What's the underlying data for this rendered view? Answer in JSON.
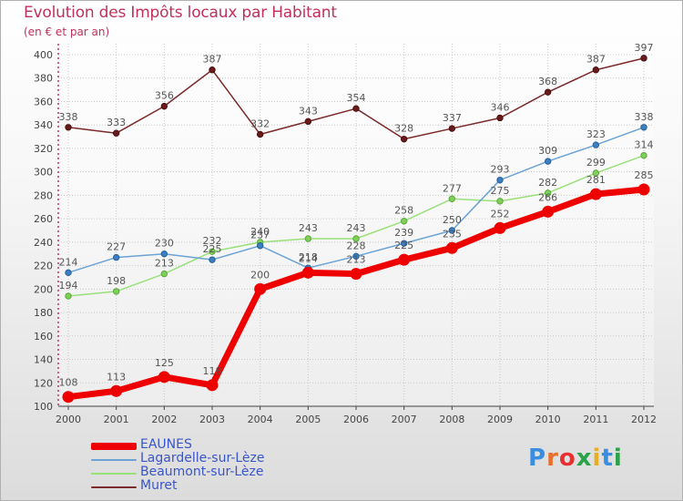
{
  "header": {
    "title": "Evolution des Impôts locaux par Habitant",
    "subtitle": "(en € et par an)"
  },
  "logo": {
    "text": "Proxiti",
    "colors": [
      "#3a8ee0",
      "#e8702a",
      "#e83030",
      "#2aa24a",
      "#e8b020",
      "#3a8ee0",
      "#2aa24a"
    ]
  },
  "chart_data": {
    "type": "line",
    "x": [
      2000,
      2001,
      2002,
      2003,
      2004,
      2005,
      2006,
      2007,
      2008,
      2009,
      2010,
      2011,
      2012
    ],
    "ylim": [
      100,
      400
    ],
    "yticks": [
      100,
      120,
      140,
      160,
      180,
      200,
      220,
      240,
      260,
      280,
      300,
      320,
      340,
      360,
      380,
      400
    ],
    "grid": true,
    "legend_position": "bottom-left",
    "series": [
      {
        "name": "EAUNES",
        "color": "#ee0000",
        "values": [
          108,
          113,
          125,
          118,
          200,
          214,
          213,
          225,
          235,
          252,
          266,
          281,
          285
        ]
      },
      {
        "name": "Lagardelle-sur-Lèze",
        "color": "#6ba3d6",
        "values": [
          214,
          227,
          230,
          225,
          237,
          218,
          228,
          239,
          250,
          293,
          309,
          323,
          338
        ]
      },
      {
        "name": "Beaumont-sur-Lèze",
        "color": "#9ae07a",
        "values": [
          194,
          198,
          213,
          232,
          240,
          243,
          243,
          258,
          277,
          275,
          282,
          299,
          314
        ]
      },
      {
        "name": "Muret",
        "color": "#7a2a2a",
        "values": [
          338,
          333,
          356,
          387,
          332,
          343,
          354,
          328,
          337,
          346,
          368,
          387,
          397
        ]
      }
    ]
  }
}
